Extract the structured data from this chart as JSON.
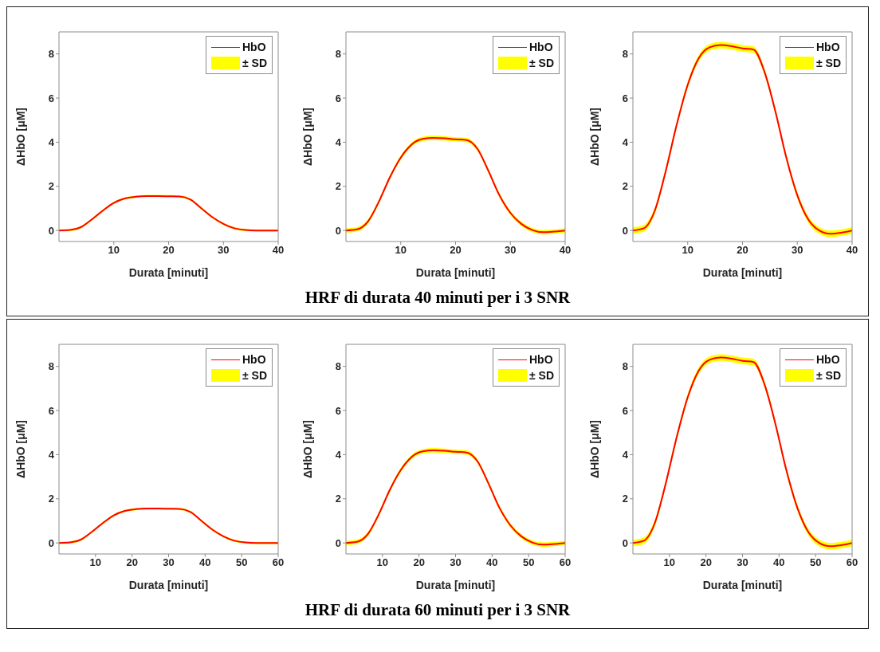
{
  "chart_data": [
    {
      "type": "line",
      "xlabel": "Durata [minuti]",
      "ylabel": "ΔHbO [μM]",
      "xlim": [
        0,
        40
      ],
      "xticks": [
        10,
        20,
        30,
        40
      ],
      "ylim": [
        -0.5,
        9
      ],
      "yticks": [
        0,
        2,
        4,
        6,
        8
      ],
      "legend": "top right",
      "x": [
        0,
        2,
        4,
        6,
        8,
        10,
        12,
        14,
        16,
        18,
        20,
        22,
        24,
        26,
        28,
        30,
        32,
        34,
        36,
        38,
        40
      ],
      "series": [
        {
          "name": "HbO",
          "type": "line",
          "color": "#ff0000",
          "values": [
            0,
            0.02,
            0.15,
            0.5,
            0.9,
            1.25,
            1.45,
            1.53,
            1.56,
            1.56,
            1.55,
            1.54,
            1.4,
            1.0,
            0.6,
            0.3,
            0.1,
            0.02,
            0,
            0,
            0
          ]
        },
        {
          "name": "± SD",
          "type": "area",
          "color": "#ffff00",
          "values": [
            null,
            null,
            null,
            null,
            null,
            null,
            null,
            null,
            null,
            null,
            null,
            null,
            null,
            null,
            null,
            null,
            null,
            null,
            null,
            null,
            null
          ],
          "lower": [
            -0.05,
            -0.03,
            0.1,
            0.45,
            0.85,
            1.2,
            1.4,
            1.48,
            1.51,
            1.51,
            1.5,
            1.49,
            1.35,
            0.95,
            0.55,
            0.25,
            0.05,
            -0.03,
            -0.05,
            -0.05,
            -0.05
          ],
          "upper": [
            0.05,
            0.07,
            0.2,
            0.55,
            0.95,
            1.3,
            1.5,
            1.58,
            1.61,
            1.61,
            1.6,
            1.59,
            1.45,
            1.05,
            0.65,
            0.35,
            0.15,
            0.07,
            0.05,
            0.05,
            0.05
          ]
        }
      ]
    },
    {
      "type": "line",
      "xlabel": "Durata [minuti]",
      "ylabel": "ΔHbO [μM]",
      "xlim": [
        0,
        40
      ],
      "xticks": [
        10,
        20,
        30,
        40
      ],
      "ylim": [
        -0.5,
        9
      ],
      "yticks": [
        0,
        2,
        4,
        6,
        8
      ],
      "legend": "top right",
      "annotations": [
        "HRF di durata 40 minuti per i 3 SNR"
      ],
      "x": [
        0,
        2,
        4,
        6,
        8,
        10,
        12,
        14,
        16,
        18,
        20,
        22,
        24,
        26,
        28,
        30,
        32,
        34,
        36,
        38,
        40
      ],
      "series": [
        {
          "name": "HbO",
          "type": "line",
          "color": "#ff0000",
          "values": [
            0,
            0.05,
            0.4,
            1.3,
            2.4,
            3.3,
            3.9,
            4.15,
            4.2,
            4.18,
            4.13,
            4.1,
            3.7,
            2.7,
            1.6,
            0.8,
            0.3,
            0.02,
            -0.08,
            -0.05,
            0
          ]
        },
        {
          "name": "± SD",
          "type": "area",
          "color": "#ffff00",
          "values": [
            null,
            null,
            null,
            null,
            null,
            null,
            null,
            null,
            null,
            null,
            null,
            null,
            null,
            null,
            null,
            null,
            null,
            null,
            null,
            null,
            null
          ],
          "lower": [
            -0.1,
            -0.05,
            0.3,
            1.2,
            2.3,
            3.2,
            3.8,
            4.05,
            4.1,
            4.08,
            4.03,
            4.0,
            3.6,
            2.6,
            1.5,
            0.7,
            0.2,
            -0.08,
            -0.18,
            -0.15,
            -0.1
          ],
          "upper": [
            0.1,
            0.15,
            0.5,
            1.4,
            2.5,
            3.4,
            4.0,
            4.25,
            4.3,
            4.28,
            4.23,
            4.2,
            3.8,
            2.8,
            1.7,
            0.9,
            0.4,
            0.12,
            0.02,
            0.05,
            0.1
          ]
        }
      ]
    },
    {
      "type": "line",
      "xlabel": "Durata [minuti]",
      "ylabel": "ΔHbO [μM]",
      "xlim": [
        0,
        40
      ],
      "xticks": [
        10,
        20,
        30,
        40
      ],
      "ylim": [
        -0.5,
        9
      ],
      "yticks": [
        0,
        2,
        4,
        6,
        8
      ],
      "legend": "top right",
      "x": [
        0,
        2,
        4,
        6,
        8,
        10,
        12,
        14,
        16,
        18,
        20,
        22,
        24,
        26,
        28,
        30,
        32,
        34,
        36,
        38,
        40
      ],
      "series": [
        {
          "name": "HbO",
          "type": "line",
          "color": "#ff0000",
          "values": [
            0,
            0.1,
            0.9,
            2.7,
            4.8,
            6.6,
            7.8,
            8.3,
            8.4,
            8.35,
            8.25,
            8.2,
            7.2,
            5.4,
            3.3,
            1.6,
            0.5,
            0,
            -0.15,
            -0.1,
            0
          ]
        },
        {
          "name": "± SD",
          "type": "area",
          "color": "#ffff00",
          "values": [
            null,
            null,
            null,
            null,
            null,
            null,
            null,
            null,
            null,
            null,
            null,
            null,
            null,
            null,
            null,
            null,
            null,
            null,
            null,
            null,
            null
          ],
          "lower": [
            -0.15,
            -0.05,
            0.75,
            2.55,
            4.65,
            6.45,
            7.65,
            8.15,
            8.25,
            8.2,
            8.1,
            8.05,
            7.05,
            5.25,
            3.15,
            1.45,
            0.35,
            -0.15,
            -0.3,
            -0.25,
            -0.15
          ],
          "upper": [
            0.15,
            0.25,
            1.05,
            2.85,
            4.95,
            6.75,
            7.95,
            8.45,
            8.55,
            8.5,
            8.4,
            8.35,
            7.35,
            5.55,
            3.45,
            1.75,
            0.65,
            0.15,
            0,
            0.05,
            0.15
          ]
        }
      ]
    },
    {
      "type": "line",
      "xlabel": "Durata [minuti]",
      "ylabel": "ΔHbO [μM]",
      "xlim": [
        0,
        60
      ],
      "xticks": [
        10,
        20,
        30,
        40,
        50,
        60
      ],
      "ylim": [
        -0.5,
        9
      ],
      "yticks": [
        0,
        2,
        4,
        6,
        8
      ],
      "legend": "top right",
      "x": [
        0,
        3,
        6,
        9,
        12,
        15,
        18,
        21,
        24,
        27,
        30,
        33,
        36,
        39,
        42,
        45,
        48,
        51,
        54,
        57,
        60
      ],
      "series": [
        {
          "name": "HbO",
          "type": "line",
          "color": "#ff0000",
          "values": [
            0,
            0.02,
            0.15,
            0.5,
            0.9,
            1.25,
            1.45,
            1.53,
            1.56,
            1.56,
            1.55,
            1.54,
            1.4,
            1.0,
            0.6,
            0.3,
            0.1,
            0.02,
            0,
            0,
            0
          ]
        },
        {
          "name": "± SD",
          "type": "area",
          "color": "#ffff00",
          "values": [
            null,
            null,
            null,
            null,
            null,
            null,
            null,
            null,
            null,
            null,
            null,
            null,
            null,
            null,
            null,
            null,
            null,
            null,
            null,
            null,
            null
          ],
          "lower": [
            -0.05,
            -0.03,
            0.1,
            0.45,
            0.85,
            1.2,
            1.4,
            1.48,
            1.51,
            1.51,
            1.5,
            1.49,
            1.35,
            0.95,
            0.55,
            0.25,
            0.05,
            -0.03,
            -0.05,
            -0.05,
            -0.05
          ],
          "upper": [
            0.05,
            0.07,
            0.2,
            0.55,
            0.95,
            1.3,
            1.5,
            1.58,
            1.61,
            1.61,
            1.6,
            1.59,
            1.45,
            1.05,
            0.65,
            0.35,
            0.15,
            0.07,
            0.05,
            0.05,
            0.05
          ]
        }
      ]
    },
    {
      "type": "line",
      "xlabel": "Durata [minuti]",
      "ylabel": "ΔHbO [μM]",
      "xlim": [
        0,
        60
      ],
      "xticks": [
        10,
        20,
        30,
        40,
        50,
        60
      ],
      "ylim": [
        -0.5,
        9
      ],
      "yticks": [
        0,
        2,
        4,
        6,
        8
      ],
      "legend": "top right",
      "annotations": [
        "HRF di durata 60 minuti per i 3 SNR"
      ],
      "x": [
        0,
        3,
        6,
        9,
        12,
        15,
        18,
        21,
        24,
        27,
        30,
        33,
        36,
        39,
        42,
        45,
        48,
        51,
        54,
        57,
        60
      ],
      "series": [
        {
          "name": "HbO",
          "type": "line",
          "color": "#ff0000",
          "values": [
            0,
            0.05,
            0.4,
            1.3,
            2.4,
            3.3,
            3.9,
            4.15,
            4.2,
            4.18,
            4.13,
            4.1,
            3.7,
            2.7,
            1.6,
            0.8,
            0.3,
            0.02,
            -0.08,
            -0.05,
            0
          ]
        },
        {
          "name": "± SD",
          "type": "area",
          "color": "#ffff00",
          "values": [
            null,
            null,
            null,
            null,
            null,
            null,
            null,
            null,
            null,
            null,
            null,
            null,
            null,
            null,
            null,
            null,
            null,
            null,
            null,
            null,
            null
          ],
          "lower": [
            -0.1,
            -0.05,
            0.3,
            1.2,
            2.3,
            3.2,
            3.8,
            4.05,
            4.1,
            4.08,
            4.03,
            4.0,
            3.6,
            2.6,
            1.5,
            0.7,
            0.2,
            -0.08,
            -0.18,
            -0.15,
            -0.1
          ],
          "upper": [
            0.1,
            0.15,
            0.5,
            1.4,
            2.5,
            3.4,
            4.0,
            4.25,
            4.3,
            4.28,
            4.23,
            4.2,
            3.8,
            2.8,
            1.7,
            0.9,
            0.4,
            0.12,
            0.02,
            0.05,
            0.1
          ]
        }
      ]
    },
    {
      "type": "line",
      "xlabel": "Durata [minuti]",
      "ylabel": "ΔHbO [μM]",
      "xlim": [
        0,
        60
      ],
      "xticks": [
        10,
        20,
        30,
        40,
        50,
        60
      ],
      "ylim": [
        -0.5,
        9
      ],
      "yticks": [
        0,
        2,
        4,
        6,
        8
      ],
      "legend": "top right",
      "x": [
        0,
        3,
        6,
        9,
        12,
        15,
        18,
        21,
        24,
        27,
        30,
        33,
        36,
        39,
        42,
        45,
        48,
        51,
        54,
        57,
        60
      ],
      "series": [
        {
          "name": "HbO",
          "type": "line",
          "color": "#ff0000",
          "values": [
            0,
            0.1,
            0.9,
            2.7,
            4.8,
            6.6,
            7.8,
            8.3,
            8.4,
            8.35,
            8.25,
            8.2,
            7.2,
            5.4,
            3.3,
            1.6,
            0.5,
            0,
            -0.15,
            -0.1,
            0
          ]
        },
        {
          "name": "± SD",
          "type": "area",
          "color": "#ffff00",
          "values": [
            null,
            null,
            null,
            null,
            null,
            null,
            null,
            null,
            null,
            null,
            null,
            null,
            null,
            null,
            null,
            null,
            null,
            null,
            null,
            null,
            null
          ],
          "lower": [
            -0.15,
            -0.05,
            0.75,
            2.55,
            4.65,
            6.45,
            7.65,
            8.15,
            8.25,
            8.2,
            8.1,
            8.05,
            7.05,
            5.25,
            3.15,
            1.45,
            0.35,
            -0.15,
            -0.3,
            -0.25,
            -0.15
          ],
          "upper": [
            0.15,
            0.25,
            1.05,
            2.85,
            4.95,
            6.75,
            7.95,
            8.45,
            8.55,
            8.5,
            8.4,
            8.35,
            7.35,
            5.55,
            3.45,
            1.75,
            0.65,
            0.15,
            0,
            0.05,
            0.15
          ]
        }
      ]
    }
  ]
}
